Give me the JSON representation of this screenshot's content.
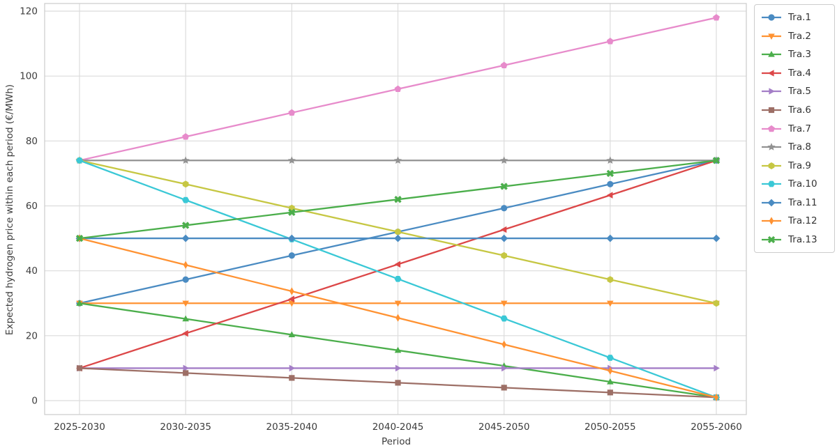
{
  "chart_data": {
    "type": "line",
    "title": "",
    "xlabel": "Period",
    "ylabel": "Expected hydrogen price within each period (€/MWh)",
    "categories": [
      "2025-2030",
      "2030-2035",
      "2035-2040",
      "2040-2045",
      "2045-2050",
      "2050-2055",
      "2055-2060"
    ],
    "yticks": [
      0,
      20,
      40,
      60,
      80,
      100,
      120
    ],
    "ylim": [
      -4.3,
      122.4
    ],
    "grid": true,
    "legend_position": "outside upper right",
    "grid_color": "#dcdcdc",
    "spine_color": "#cccccc",
    "tick_color": "#3c3c3c",
    "series": [
      {
        "name": "Tra.1",
        "color": "#4a8bc2",
        "marker": "circle",
        "values": [
          30,
          37.3,
          44.7,
          52,
          59.3,
          66.7,
          74
        ]
      },
      {
        "name": "Tra.2",
        "color": "#ff9232",
        "marker": "triangle-down",
        "values": [
          30,
          30,
          30,
          30,
          30,
          30,
          30
        ]
      },
      {
        "name": "Tra.3",
        "color": "#4bae4b",
        "marker": "triangle-up",
        "values": [
          30,
          25.2,
          20.3,
          15.5,
          10.7,
          5.8,
          1
        ]
      },
      {
        "name": "Tra.4",
        "color": "#dc4748",
        "marker": "triangle-left",
        "values": [
          10,
          20.7,
          31.3,
          42,
          52.7,
          63.3,
          74
        ]
      },
      {
        "name": "Tra.5",
        "color": "#a47ec7",
        "marker": "triangle-right",
        "values": [
          10,
          10,
          10,
          10,
          10,
          10,
          10
        ]
      },
      {
        "name": "Tra.6",
        "color": "#9d6f66",
        "marker": "square",
        "values": [
          10,
          8.5,
          7,
          5.5,
          4,
          2.5,
          1
        ]
      },
      {
        "name": "Tra.7",
        "color": "#e78bcb",
        "marker": "pentagon",
        "values": [
          74,
          81.3,
          88.7,
          96,
          103.3,
          110.7,
          118
        ]
      },
      {
        "name": "Tra.8",
        "color": "#929292",
        "marker": "star",
        "values": [
          74,
          74,
          74,
          74,
          74,
          74,
          74
        ]
      },
      {
        "name": "Tra.9",
        "color": "#c6c743",
        "marker": "hexagon-pointy",
        "values": [
          74,
          66.7,
          59.3,
          52,
          44.7,
          37.3,
          30
        ]
      },
      {
        "name": "Tra.10",
        "color": "#3ac8d6",
        "marker": "hexagon-flat",
        "values": [
          74,
          61.8,
          49.7,
          37.5,
          25.3,
          13.2,
          1
        ]
      },
      {
        "name": "Tra.11",
        "color": "#4a8bc2",
        "marker": "diamond",
        "values": [
          50,
          50,
          50,
          50,
          50,
          50,
          50
        ]
      },
      {
        "name": "Tra.12",
        "color": "#ff9232",
        "marker": "thin-diamond",
        "values": [
          50,
          41.8,
          33.7,
          25.5,
          17.3,
          9.2,
          1
        ]
      },
      {
        "name": "Tra.13",
        "color": "#4bae4b",
        "marker": "x-filled",
        "values": [
          50,
          54,
          58,
          62,
          66,
          70,
          74
        ]
      }
    ]
  }
}
